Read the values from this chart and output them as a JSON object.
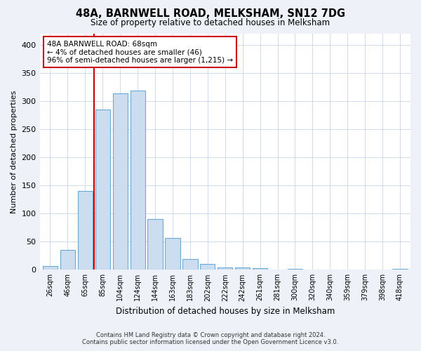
{
  "title": "48A, BARNWELL ROAD, MELKSHAM, SN12 7DG",
  "subtitle": "Size of property relative to detached houses in Melksham",
  "xlabel": "Distribution of detached houses by size in Melksham",
  "ylabel": "Number of detached properties",
  "bar_labels": [
    "26sqm",
    "46sqm",
    "65sqm",
    "85sqm",
    "104sqm",
    "124sqm",
    "144sqm",
    "163sqm",
    "183sqm",
    "202sqm",
    "222sqm",
    "242sqm",
    "261sqm",
    "281sqm",
    "300sqm",
    "320sqm",
    "340sqm",
    "359sqm",
    "379sqm",
    "398sqm",
    "418sqm"
  ],
  "bar_values": [
    6,
    35,
    140,
    285,
    313,
    318,
    90,
    57,
    19,
    10,
    4,
    4,
    3,
    0,
    2,
    1,
    0,
    1,
    0,
    0,
    2
  ],
  "bar_color": "#ccddf0",
  "bar_edge_color": "#6aaad4",
  "vline_color": "#cc0000",
  "vline_x": 2.5,
  "ylim": [
    0,
    420
  ],
  "yticks": [
    0,
    50,
    100,
    150,
    200,
    250,
    300,
    350,
    400
  ],
  "annotation_title": "48A BARNWELL ROAD: 68sqm",
  "annotation_line1": "← 4% of detached houses are smaller (46)",
  "annotation_line2": "96% of semi-detached houses are larger (1,215) →",
  "annotation_box_color": "#cc0000",
  "footer_line1": "Contains HM Land Registry data © Crown copyright and database right 2024.",
  "footer_line2": "Contains public sector information licensed under the Open Government Licence v3.0.",
  "bg_color": "#eef2f8",
  "plot_bg_color": "#ffffff"
}
